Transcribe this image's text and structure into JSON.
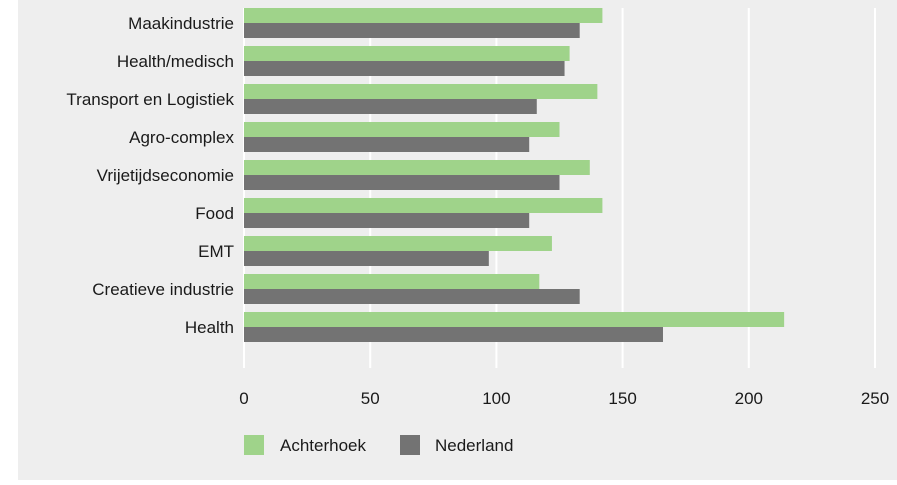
{
  "chart_data": {
    "type": "bar",
    "orientation": "horizontal",
    "title": "",
    "xlabel": "",
    "ylabel": "",
    "categories": [
      "Maakindustrie",
      "Health/medisch",
      "Transport en Logistiek",
      "Agro-complex",
      "Vrijetijdseconomie",
      "Food",
      "EMT",
      "Creatieve industrie",
      "Health"
    ],
    "series": [
      {
        "name": "Achterhoek",
        "color": "#9fd38a",
        "values": [
          142,
          129,
          140,
          125,
          137,
          142,
          122,
          117,
          214
        ]
      },
      {
        "name": "Nederland",
        "color": "#737373",
        "values": [
          133,
          127,
          116,
          113,
          125,
          113,
          97,
          133,
          166
        ]
      }
    ],
    "xlim": [
      0,
      250
    ],
    "xticks": [
      "0",
      "50",
      "100",
      "150",
      "200",
      "250"
    ],
    "grid": true,
    "legend": "bottom-left"
  }
}
